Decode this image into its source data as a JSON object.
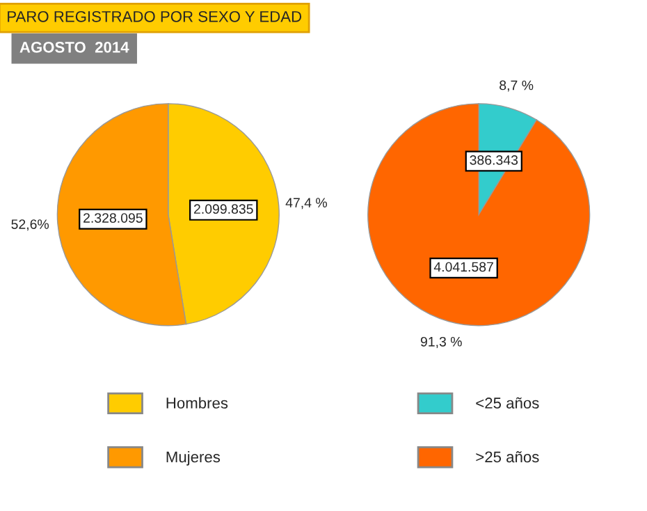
{
  "chart_data": [
    {
      "type": "pie",
      "title": "PARO REGISTRADO POR SEXO Y EDAD",
      "subtitle": "AGOSTO  2014",
      "categories": [
        "Hombres",
        "Mujeres"
      ],
      "values": [
        2099835,
        2328095
      ],
      "colors": [
        "#ffcc00",
        "#ff9900"
      ],
      "value_labels": [
        "2.099.835",
        "2.328.095"
      ],
      "annotations": [
        "47,4 %",
        "52,6%"
      ],
      "legend": "bottom"
    },
    {
      "type": "pie",
      "categories": [
        "<25 años",
        ">25 años"
      ],
      "values": [
        386343,
        4041587
      ],
      "colors": [
        "#33cccc",
        "#ff6600"
      ],
      "value_labels": [
        "386.343",
        "4.041.587"
      ],
      "annotations": [
        "8,7 %",
        "91,3 %"
      ],
      "legend": "bottom"
    }
  ]
}
